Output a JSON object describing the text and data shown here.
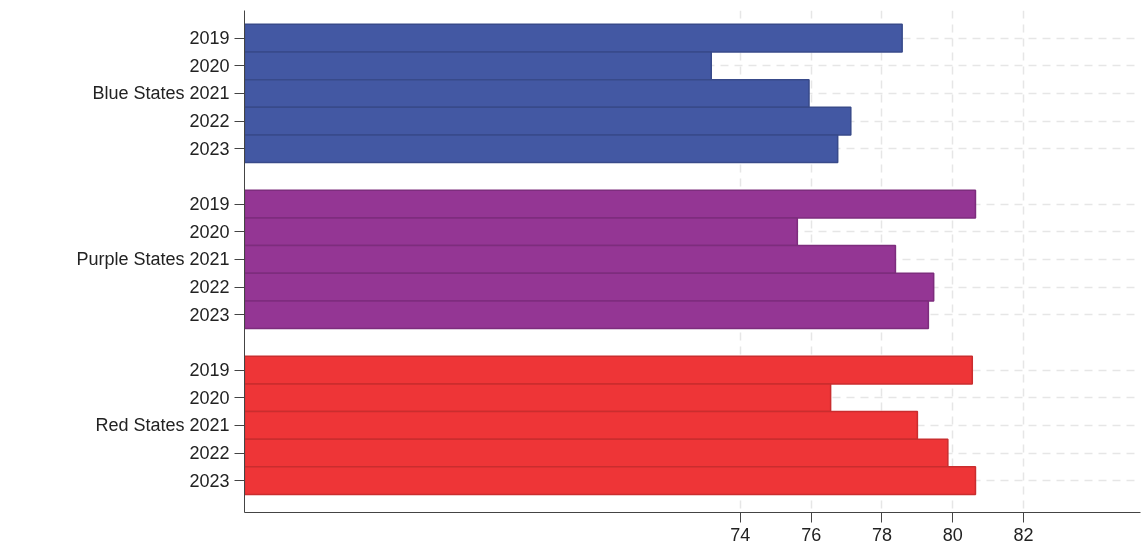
{
  "chart_data": {
    "type": "bar",
    "orientation": "horizontal",
    "categories": [
      "2019",
      "2020",
      "Blue States 2021",
      "2022",
      "2023",
      null,
      "2019",
      "2020",
      "Purple States 2021",
      "2022",
      "2023",
      null,
      "2019",
      "2020",
      "Red States 2021",
      "2022",
      "2023"
    ],
    "values": [
      78.57,
      73.18,
      75.94,
      77.12,
      76.75,
      null,
      80.64,
      75.61,
      78.38,
      79.46,
      79.31,
      null,
      80.55,
      76.55,
      79.0,
      79.86,
      80.64
    ],
    "colors": [
      "#4358a3",
      "#4358a3",
      "#4358a3",
      "#4358a3",
      "#4358a3",
      null,
      "#943694",
      "#943694",
      "#943694",
      "#943694",
      "#943694",
      null,
      "#ee3537",
      "#ee3537",
      "#ee3537",
      "#ee3537",
      "#ee3537"
    ],
    "xlim": [
      60,
      85.3
    ],
    "xticks": [
      74,
      76,
      78,
      80,
      82
    ],
    "grid": true
  }
}
